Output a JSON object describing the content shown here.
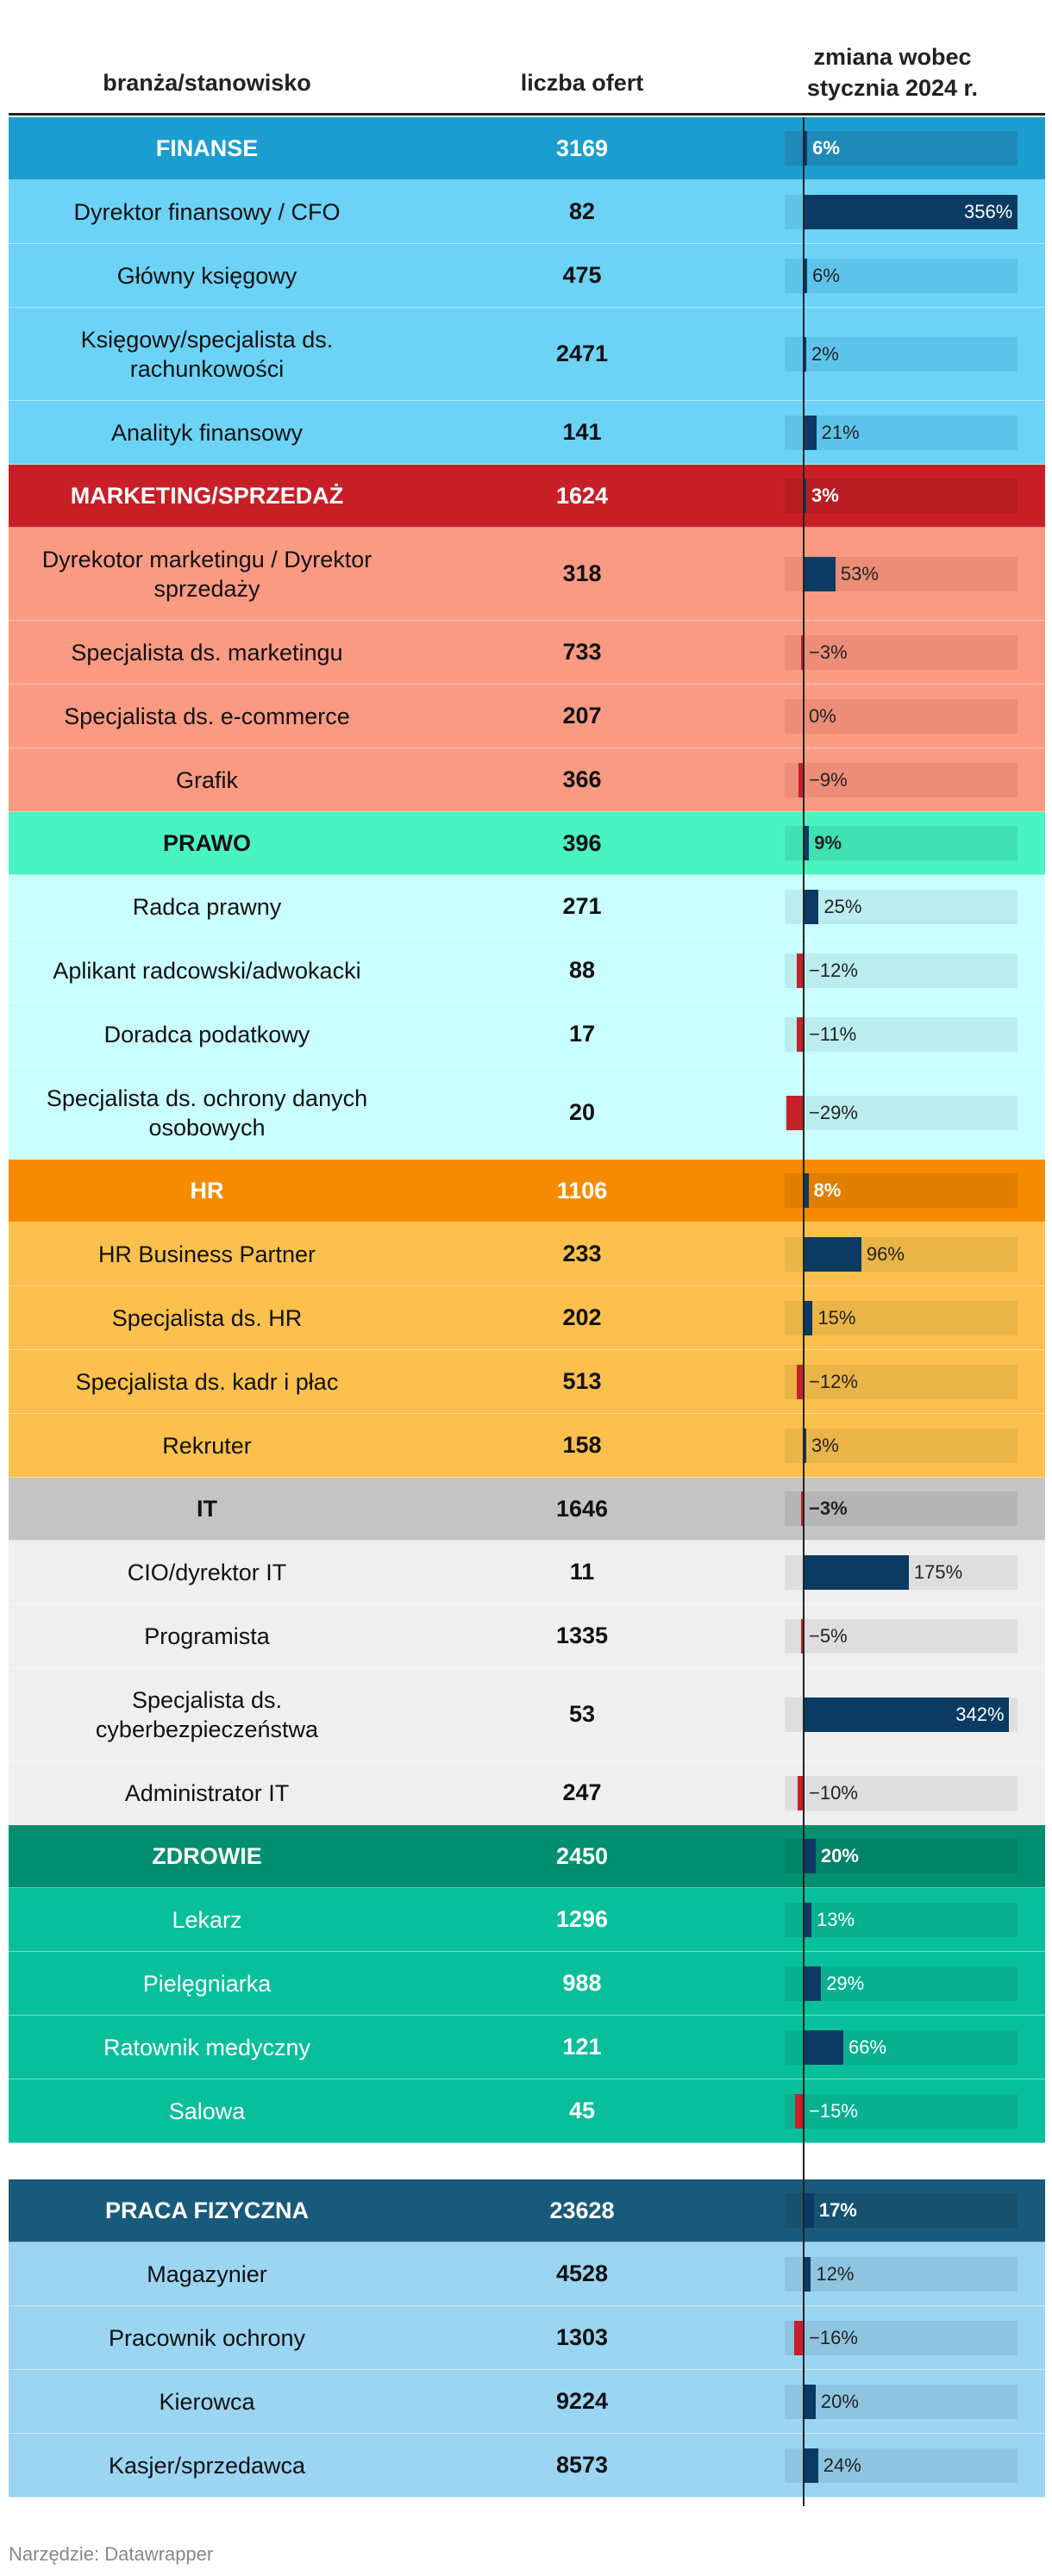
{
  "header": {
    "col_name": "branża/stanowisko",
    "col_count": "liczba ofert",
    "col_change_l1": "zmiana wobec",
    "col_change_l2": "stycznia 2024 r."
  },
  "source": "Narzędzie: Datawrapper",
  "colors": {
    "positive_bar": "#0b3a63",
    "negative_bar": "#c8202a"
  },
  "chart_data": {
    "type": "table",
    "columns": [
      "branża/stanowisko",
      "liczba ofert",
      "zmiana wobec stycznia 2024 r."
    ],
    "bar_scale_max": 356,
    "groups": [
      {
        "name": "FINANSE",
        "count": "3169",
        "change": 6,
        "change_label": "6%",
        "colors": {
          "cat": "#1b9ecf",
          "cat_track": "#1f8ab8",
          "row": "#6cd3f6",
          "row_track": "#5ec3ea",
          "cat_text": "#ffffff",
          "row_text": "#111111"
        },
        "rows": [
          {
            "name": "Dyrektor finansowy / CFO",
            "count": "82",
            "change": 356,
            "change_label": "356%"
          },
          {
            "name": "Główny księgowy",
            "count": "475",
            "change": 6,
            "change_label": "6%"
          },
          {
            "name": "Księgowy/specjalista ds. rachunkowości",
            "count": "2471",
            "change": 2,
            "change_label": "2%"
          },
          {
            "name": "Analityk finansowy",
            "count": "141",
            "change": 21,
            "change_label": "21%"
          }
        ]
      },
      {
        "name": "MARKETING/SPRZEDAŻ",
        "count": "1624",
        "change": 3,
        "change_label": "3%",
        "colors": {
          "cat": "#c81f27",
          "cat_track": "#b81c23",
          "row": "#fb9a82",
          "row_track": "#eb8d77",
          "cat_text": "#ffffff",
          "row_text": "#111111"
        },
        "rows": [
          {
            "name": "Dyrekotor marketingu / Dyrektor sprzedaży",
            "count": "318",
            "change": 53,
            "change_label": "53%"
          },
          {
            "name": "Specjalista ds. marketingu",
            "count": "733",
            "change": -3,
            "change_label": "−3%"
          },
          {
            "name": "Specjalista ds. e-commerce",
            "count": "207",
            "change": 0,
            "change_label": "0%"
          },
          {
            "name": "Grafik",
            "count": "366",
            "change": -9,
            "change_label": "−9%"
          }
        ]
      },
      {
        "name": "PRAWO",
        "count": "396",
        "change": 9,
        "change_label": "9%",
        "colors": {
          "cat": "#4af4c1",
          "cat_track": "#40e1b1",
          "row": "#caffff",
          "row_track": "#bcedee",
          "cat_text": "#111111",
          "row_text": "#111111"
        },
        "rows": [
          {
            "name": "Radca prawny",
            "count": "271",
            "change": 25,
            "change_label": "25%"
          },
          {
            "name": "Aplikant radcowski/adwokacki",
            "count": "88",
            "change": -12,
            "change_label": "−12%"
          },
          {
            "name": "Doradca podatkowy",
            "count": "17",
            "change": -11,
            "change_label": "−11%"
          },
          {
            "name": "Specjalista ds. ochrony danych osobowych",
            "count": "20",
            "change": -29,
            "change_label": "−29%"
          }
        ]
      },
      {
        "name": "HR",
        "count": "1106",
        "change": 8,
        "change_label": "8%",
        "colors": {
          "cat": "#f78b00",
          "cat_track": "#e07e00",
          "row": "#fbc04d",
          "row_track": "#ebb446",
          "cat_text": "#ffffff",
          "row_text": "#111111"
        },
        "rows": [
          {
            "name": "HR Business Partner",
            "count": "233",
            "change": 96,
            "change_label": "96%"
          },
          {
            "name": "Specjalista ds. HR",
            "count": "202",
            "change": 15,
            "change_label": "15%"
          },
          {
            "name": "Specjalista ds. kadr i płac",
            "count": "513",
            "change": -12,
            "change_label": "−12%"
          },
          {
            "name": "Rekruter",
            "count": "158",
            "change": 3,
            "change_label": "3%"
          }
        ]
      },
      {
        "name": "IT",
        "count": "1646",
        "change": -3,
        "change_label": "−3%",
        "colors": {
          "cat": "#c4c4c4",
          "cat_track": "#b5b5b5",
          "row": "#efefef",
          "row_track": "#dedede",
          "cat_text": "#111111",
          "row_text": "#111111"
        },
        "rows": [
          {
            "name": "CIO/dyrektor IT",
            "count": "11",
            "change": 175,
            "change_label": "175%"
          },
          {
            "name": "Programista",
            "count": "1335",
            "change": -5,
            "change_label": "−5%"
          },
          {
            "name": "Specjalista ds. cyberbezpieczeństwa",
            "count": "53",
            "change": 342,
            "change_label": "342%"
          },
          {
            "name": "Administrator IT",
            "count": "247",
            "change": -10,
            "change_label": "−10%"
          }
        ]
      },
      {
        "name": "ZDROWIE",
        "count": "2450",
        "change": 20,
        "change_label": "20%",
        "colors": {
          "cat": "#008f70",
          "cat_track": "#008266",
          "row": "#08bf9b",
          "row_track": "#07b08f",
          "cat_text": "#ffffff",
          "row_text": "#ffffff"
        },
        "rows": [
          {
            "name": "Lekarz",
            "count": "1296",
            "change": 13,
            "change_label": "13%"
          },
          {
            "name": "Pielęgniarka",
            "count": "988",
            "change": 29,
            "change_label": "29%"
          },
          {
            "name": "Ratownik medyczny",
            "count": "121",
            "change": 66,
            "change_label": "66%"
          },
          {
            "name": "Salowa",
            "count": "45",
            "change": -15,
            "change_label": "−15%"
          }
        ]
      },
      {
        "name": "PRACA FIZYCZNA",
        "count": "23628",
        "change": 17,
        "change_label": "17%",
        "colors": {
          "cat": "#185a7b",
          "cat_track": "#165270",
          "row": "#9bd5f2",
          "row_track": "#8ec4e0",
          "cat_text": "#ffffff",
          "row_text": "#111111"
        },
        "rows": [
          {
            "name": "Magazynier",
            "count": "4528",
            "change": 12,
            "change_label": "12%"
          },
          {
            "name": "Pracownik ochrony",
            "count": "1303",
            "change": -16,
            "change_label": "−16%"
          },
          {
            "name": "Kierowca",
            "count": "9224",
            "change": 20,
            "change_label": "20%"
          },
          {
            "name": "Kasjer/sprzedawca",
            "count": "8573",
            "change": 24,
            "change_label": "24%"
          }
        ]
      }
    ]
  }
}
